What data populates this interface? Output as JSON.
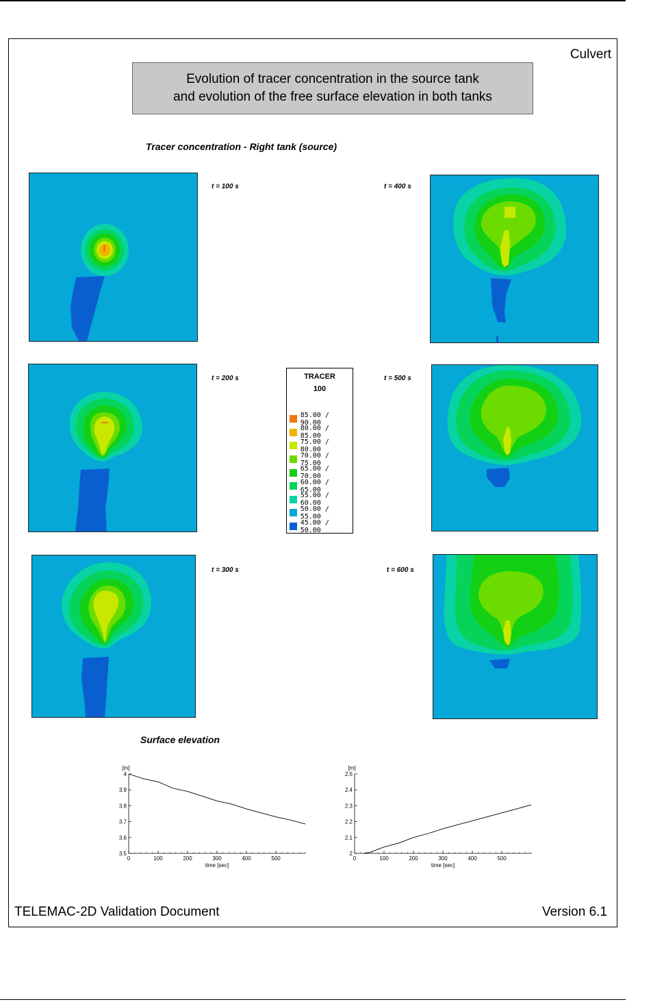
{
  "document": {
    "case_name": "Culvert",
    "title": "Evolution of tracer concentration in the source tank\nand evolution of the free surface elevation in both tanks",
    "section_tracer": "Tracer concentration - Right tank (source)",
    "section_surface": "Surface elevation",
    "footer_left": "TELEMAC-2D Validation Document",
    "footer_right": "Version 6.1"
  },
  "panels": [
    {
      "label": "t = 100 s"
    },
    {
      "label": "t = 400 s"
    },
    {
      "label": "t = 200 s"
    },
    {
      "label": "t = 500 s"
    },
    {
      "label": "t = 300 s"
    },
    {
      "label": "t = 600 s"
    }
  ],
  "legend": {
    "title": "TRACER",
    "subtitle": "100",
    "items": [
      {
        "range": "85.00 /  90.00",
        "color": "#f07a10"
      },
      {
        "range": "80.00 /  85.00",
        "color": "#f0b400"
      },
      {
        "range": "75.00 /  80.00",
        "color": "#c8e800"
      },
      {
        "range": "70.00 /  75.00",
        "color": "#6cdc00"
      },
      {
        "range": "65.00 /  70.00",
        "color": "#14d014"
      },
      {
        "range": "60.00 /  65.00",
        "color": "#06d45a"
      },
      {
        "range": "55.00 /  60.00",
        "color": "#08d2a6"
      },
      {
        "range": "50.00 /  55.00",
        "color": "#05a8d6"
      },
      {
        "range": "45.00 /  50.00",
        "color": "#0a5fd0"
      }
    ]
  },
  "chart_data": [
    {
      "type": "line",
      "ylabel": "[m]",
      "xlabel": "time [sec]",
      "xlim": [
        0,
        600
      ],
      "ylim": [
        3.5,
        4.0
      ],
      "xticks": [
        0,
        100,
        200,
        300,
        400,
        500
      ],
      "yticks": [
        3.5,
        3.6,
        3.7,
        3.8,
        3.9,
        4.0
      ],
      "ytick_labels": [
        "3.5",
        "3.6",
        "3.7",
        "3.8",
        "3.9",
        "4"
      ],
      "x": [
        0,
        50,
        100,
        150,
        200,
        250,
        300,
        350,
        400,
        450,
        500,
        550,
        600
      ],
      "y": [
        4.0,
        3.97,
        3.95,
        3.91,
        3.89,
        3.86,
        3.83,
        3.81,
        3.78,
        3.755,
        3.73,
        3.71,
        3.685
      ]
    },
    {
      "type": "line",
      "ylabel": "[m]",
      "xlabel": "time [sec]",
      "xlim": [
        0,
        600
      ],
      "ylim": [
        2.0,
        2.5
      ],
      "xticks": [
        0,
        100,
        200,
        300,
        400,
        500
      ],
      "yticks": [
        2.0,
        2.1,
        2.2,
        2.3,
        2.4,
        2.5
      ],
      "ytick_labels": [
        "2",
        "2.1",
        "2.2",
        "2.3",
        "2.4",
        "2.5"
      ],
      "x": [
        30,
        50,
        100,
        150,
        200,
        250,
        300,
        350,
        400,
        450,
        500,
        550,
        600
      ],
      "y": [
        2.0,
        2.005,
        2.04,
        2.065,
        2.1,
        2.125,
        2.155,
        2.18,
        2.205,
        2.23,
        2.255,
        2.28,
        2.305
      ]
    }
  ]
}
